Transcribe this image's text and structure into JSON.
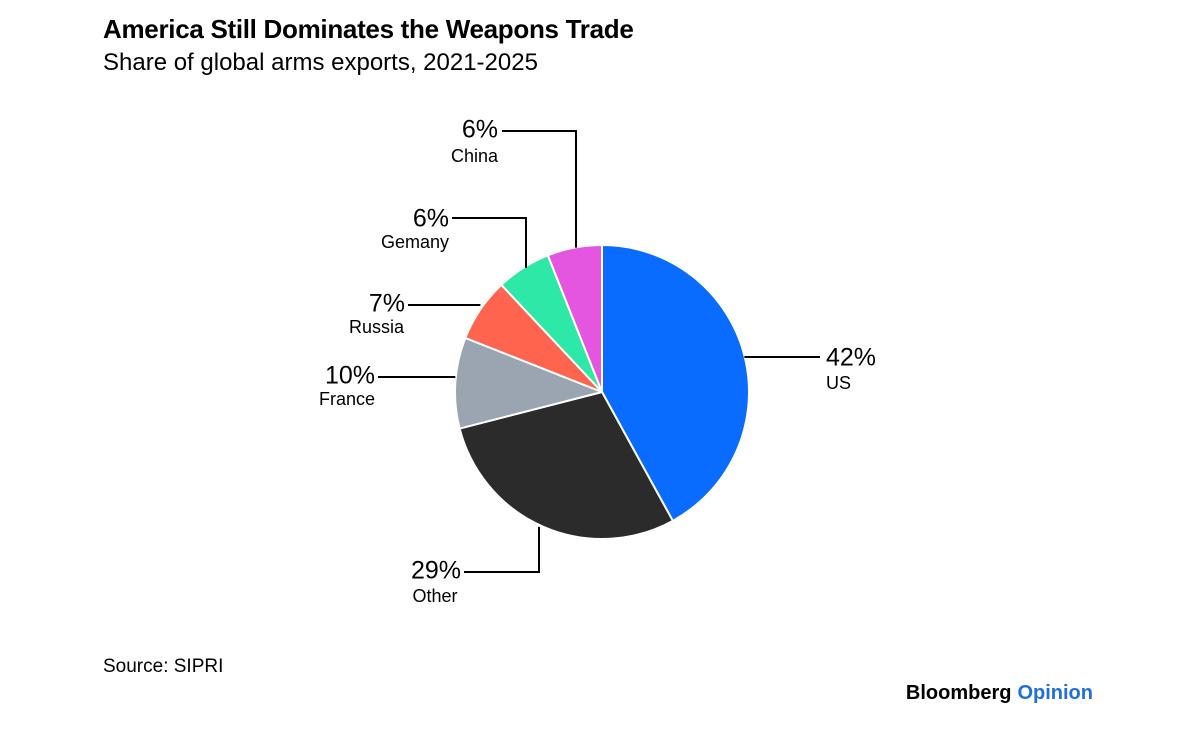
{
  "header": {
    "title": "America Still Dominates the Weapons Trade",
    "subtitle": "Share of global arms exports, 2021-2025"
  },
  "footer": {
    "source": "Source: SIPRI",
    "brand_name": "Bloomberg",
    "brand_section": "Opinion",
    "brand_section_color": "#1f6fe0"
  },
  "chart_data": {
    "type": "pie",
    "title": "America Still Dominates the Weapons Trade",
    "subtitle": "Share of global arms exports, 2021-2025",
    "start": "12 o'clock",
    "direction": "clockwise",
    "slices": [
      {
        "key": "us",
        "label": "US",
        "value": 42,
        "display": "42%",
        "color": "#0a6cff"
      },
      {
        "key": "other",
        "label": "Other",
        "value": 29,
        "display": "29%",
        "color": "#2b2b2b"
      },
      {
        "key": "france",
        "label": "France",
        "value": 10,
        "display": "10%",
        "color": "#9aa5b1"
      },
      {
        "key": "russia",
        "label": "Russia",
        "value": 7,
        "display": "7%",
        "color": "#ff644e"
      },
      {
        "key": "germany",
        "label": "Gemany",
        "value": 6,
        "display": "6%",
        "color": "#2ee8a8"
      },
      {
        "key": "china",
        "label": "China",
        "value": 6,
        "display": "6%",
        "color": "#e455e0"
      }
    ]
  }
}
